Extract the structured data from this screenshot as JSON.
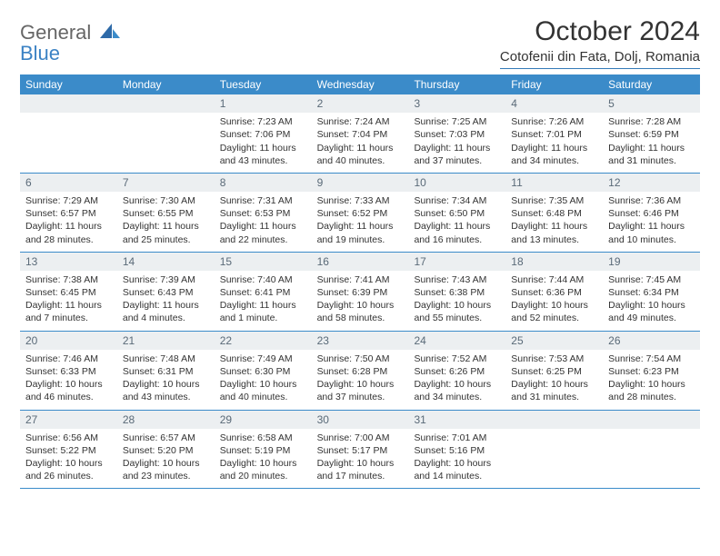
{
  "brand": {
    "general": "General",
    "blue": "Blue"
  },
  "title": "October 2024",
  "location": "Cotofenii din Fata, Dolj, Romania",
  "colors": {
    "header_bg": "#3b8bc9",
    "row_border": "#3b8bc9",
    "daynum_bg": "#eceff1",
    "daynum_color": "#5a6a78",
    "text": "#333333",
    "logo_blue": "#3b82c4"
  },
  "weekdays": [
    "Sunday",
    "Monday",
    "Tuesday",
    "Wednesday",
    "Thursday",
    "Friday",
    "Saturday"
  ],
  "weeks": [
    [
      null,
      null,
      {
        "n": "1",
        "sr": "Sunrise: 7:23 AM",
        "ss": "Sunset: 7:06 PM",
        "dl1": "Daylight: 11 hours",
        "dl2": "and 43 minutes."
      },
      {
        "n": "2",
        "sr": "Sunrise: 7:24 AM",
        "ss": "Sunset: 7:04 PM",
        "dl1": "Daylight: 11 hours",
        "dl2": "and 40 minutes."
      },
      {
        "n": "3",
        "sr": "Sunrise: 7:25 AM",
        "ss": "Sunset: 7:03 PM",
        "dl1": "Daylight: 11 hours",
        "dl2": "and 37 minutes."
      },
      {
        "n": "4",
        "sr": "Sunrise: 7:26 AM",
        "ss": "Sunset: 7:01 PM",
        "dl1": "Daylight: 11 hours",
        "dl2": "and 34 minutes."
      },
      {
        "n": "5",
        "sr": "Sunrise: 7:28 AM",
        "ss": "Sunset: 6:59 PM",
        "dl1": "Daylight: 11 hours",
        "dl2": "and 31 minutes."
      }
    ],
    [
      {
        "n": "6",
        "sr": "Sunrise: 7:29 AM",
        "ss": "Sunset: 6:57 PM",
        "dl1": "Daylight: 11 hours",
        "dl2": "and 28 minutes."
      },
      {
        "n": "7",
        "sr": "Sunrise: 7:30 AM",
        "ss": "Sunset: 6:55 PM",
        "dl1": "Daylight: 11 hours",
        "dl2": "and 25 minutes."
      },
      {
        "n": "8",
        "sr": "Sunrise: 7:31 AM",
        "ss": "Sunset: 6:53 PM",
        "dl1": "Daylight: 11 hours",
        "dl2": "and 22 minutes."
      },
      {
        "n": "9",
        "sr": "Sunrise: 7:33 AM",
        "ss": "Sunset: 6:52 PM",
        "dl1": "Daylight: 11 hours",
        "dl2": "and 19 minutes."
      },
      {
        "n": "10",
        "sr": "Sunrise: 7:34 AM",
        "ss": "Sunset: 6:50 PM",
        "dl1": "Daylight: 11 hours",
        "dl2": "and 16 minutes."
      },
      {
        "n": "11",
        "sr": "Sunrise: 7:35 AM",
        "ss": "Sunset: 6:48 PM",
        "dl1": "Daylight: 11 hours",
        "dl2": "and 13 minutes."
      },
      {
        "n": "12",
        "sr": "Sunrise: 7:36 AM",
        "ss": "Sunset: 6:46 PM",
        "dl1": "Daylight: 11 hours",
        "dl2": "and 10 minutes."
      }
    ],
    [
      {
        "n": "13",
        "sr": "Sunrise: 7:38 AM",
        "ss": "Sunset: 6:45 PM",
        "dl1": "Daylight: 11 hours",
        "dl2": "and 7 minutes."
      },
      {
        "n": "14",
        "sr": "Sunrise: 7:39 AM",
        "ss": "Sunset: 6:43 PM",
        "dl1": "Daylight: 11 hours",
        "dl2": "and 4 minutes."
      },
      {
        "n": "15",
        "sr": "Sunrise: 7:40 AM",
        "ss": "Sunset: 6:41 PM",
        "dl1": "Daylight: 11 hours",
        "dl2": "and 1 minute."
      },
      {
        "n": "16",
        "sr": "Sunrise: 7:41 AM",
        "ss": "Sunset: 6:39 PM",
        "dl1": "Daylight: 10 hours",
        "dl2": "and 58 minutes."
      },
      {
        "n": "17",
        "sr": "Sunrise: 7:43 AM",
        "ss": "Sunset: 6:38 PM",
        "dl1": "Daylight: 10 hours",
        "dl2": "and 55 minutes."
      },
      {
        "n": "18",
        "sr": "Sunrise: 7:44 AM",
        "ss": "Sunset: 6:36 PM",
        "dl1": "Daylight: 10 hours",
        "dl2": "and 52 minutes."
      },
      {
        "n": "19",
        "sr": "Sunrise: 7:45 AM",
        "ss": "Sunset: 6:34 PM",
        "dl1": "Daylight: 10 hours",
        "dl2": "and 49 minutes."
      }
    ],
    [
      {
        "n": "20",
        "sr": "Sunrise: 7:46 AM",
        "ss": "Sunset: 6:33 PM",
        "dl1": "Daylight: 10 hours",
        "dl2": "and 46 minutes."
      },
      {
        "n": "21",
        "sr": "Sunrise: 7:48 AM",
        "ss": "Sunset: 6:31 PM",
        "dl1": "Daylight: 10 hours",
        "dl2": "and 43 minutes."
      },
      {
        "n": "22",
        "sr": "Sunrise: 7:49 AM",
        "ss": "Sunset: 6:30 PM",
        "dl1": "Daylight: 10 hours",
        "dl2": "and 40 minutes."
      },
      {
        "n": "23",
        "sr": "Sunrise: 7:50 AM",
        "ss": "Sunset: 6:28 PM",
        "dl1": "Daylight: 10 hours",
        "dl2": "and 37 minutes."
      },
      {
        "n": "24",
        "sr": "Sunrise: 7:52 AM",
        "ss": "Sunset: 6:26 PM",
        "dl1": "Daylight: 10 hours",
        "dl2": "and 34 minutes."
      },
      {
        "n": "25",
        "sr": "Sunrise: 7:53 AM",
        "ss": "Sunset: 6:25 PM",
        "dl1": "Daylight: 10 hours",
        "dl2": "and 31 minutes."
      },
      {
        "n": "26",
        "sr": "Sunrise: 7:54 AM",
        "ss": "Sunset: 6:23 PM",
        "dl1": "Daylight: 10 hours",
        "dl2": "and 28 minutes."
      }
    ],
    [
      {
        "n": "27",
        "sr": "Sunrise: 6:56 AM",
        "ss": "Sunset: 5:22 PM",
        "dl1": "Daylight: 10 hours",
        "dl2": "and 26 minutes."
      },
      {
        "n": "28",
        "sr": "Sunrise: 6:57 AM",
        "ss": "Sunset: 5:20 PM",
        "dl1": "Daylight: 10 hours",
        "dl2": "and 23 minutes."
      },
      {
        "n": "29",
        "sr": "Sunrise: 6:58 AM",
        "ss": "Sunset: 5:19 PM",
        "dl1": "Daylight: 10 hours",
        "dl2": "and 20 minutes."
      },
      {
        "n": "30",
        "sr": "Sunrise: 7:00 AM",
        "ss": "Sunset: 5:17 PM",
        "dl1": "Daylight: 10 hours",
        "dl2": "and 17 minutes."
      },
      {
        "n": "31",
        "sr": "Sunrise: 7:01 AM",
        "ss": "Sunset: 5:16 PM",
        "dl1": "Daylight: 10 hours",
        "dl2": "and 14 minutes."
      },
      null,
      null
    ]
  ]
}
